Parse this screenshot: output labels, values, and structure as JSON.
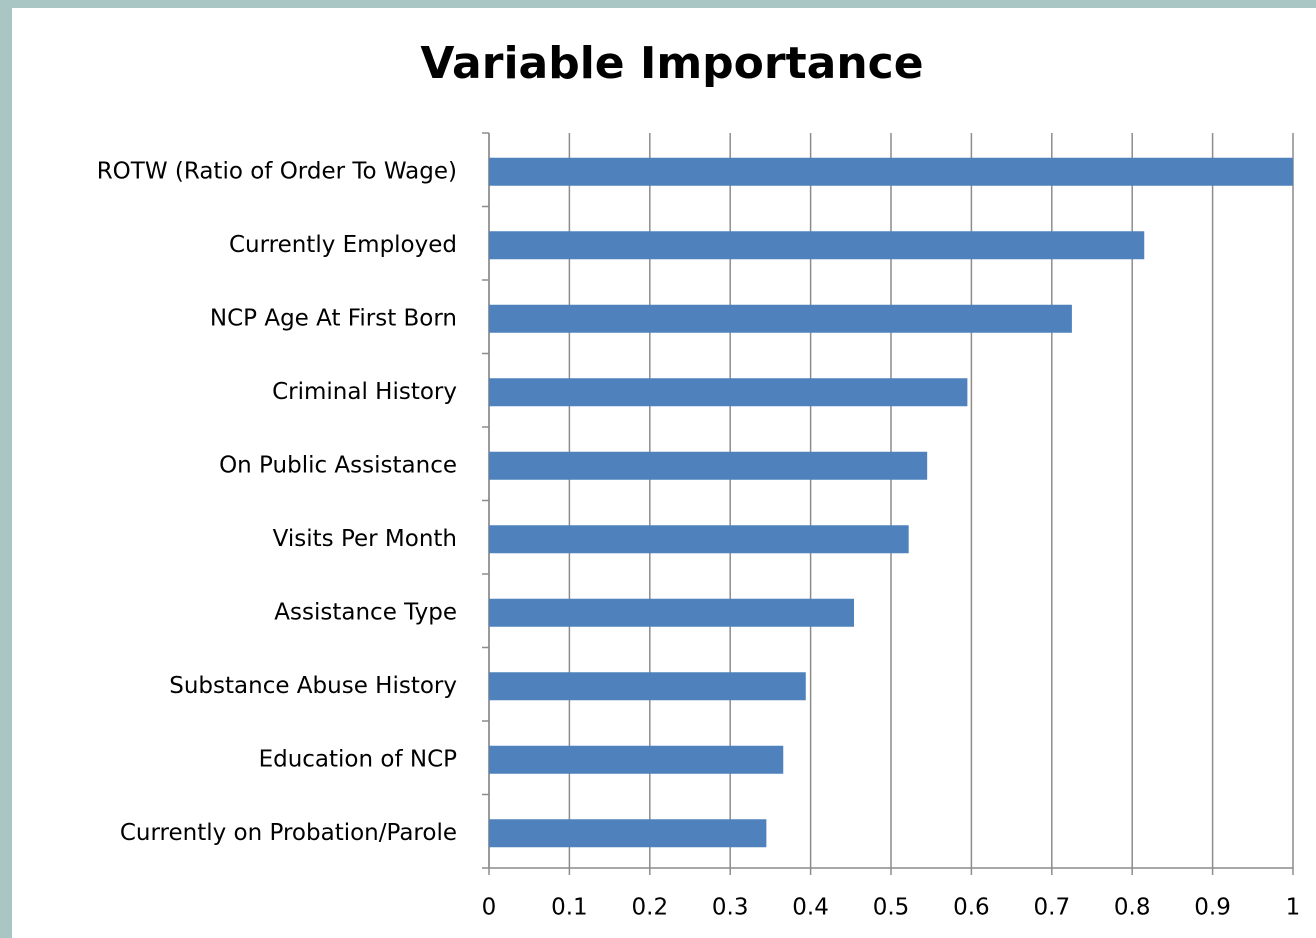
{
  "chart_data": {
    "type": "bar",
    "orientation": "horizontal",
    "title": "Variable Importance",
    "categories": [
      "ROTW (Ratio of Order To Wage)",
      "Currently Employed",
      "NCP Age At First Born",
      "Criminal History",
      "On Public Assistance",
      "Visits Per Month",
      "Assistance Type",
      "Substance Abuse History",
      "Education of NCP",
      "Currently on Probation/Parole"
    ],
    "values": [
      1.0,
      0.815,
      0.725,
      0.595,
      0.545,
      0.522,
      0.454,
      0.394,
      0.366,
      0.345
    ],
    "color": "#4f81bd",
    "xlim": [
      0,
      1
    ],
    "xticks": [
      0,
      0.1,
      0.2,
      0.3,
      0.4,
      0.5,
      0.6,
      0.7,
      0.8,
      0.9,
      1
    ],
    "grid": true
  }
}
